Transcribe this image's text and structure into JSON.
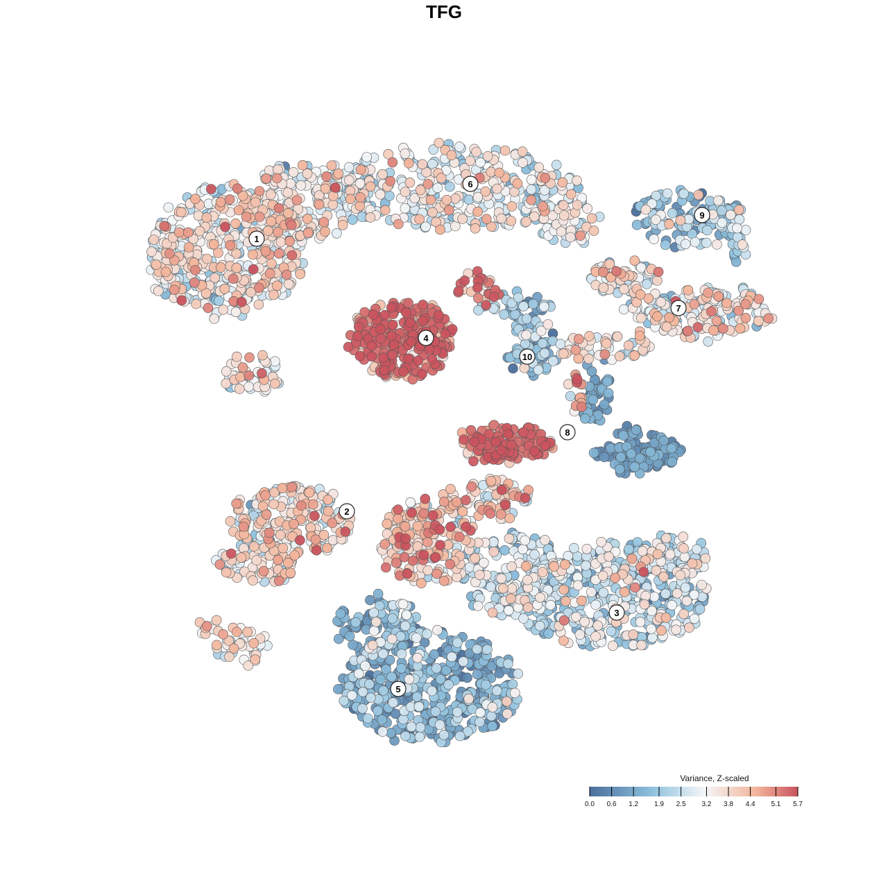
{
  "title": "TFG",
  "legend": {
    "title": "Variance, Z-scaled",
    "ticks": [
      "0.0",
      "0.6",
      "1.2",
      "1.9",
      "2.5",
      "3.2",
      "3.8",
      "4.4",
      "5.1",
      "5.7"
    ]
  },
  "colors": {
    "low": "#4a6f9c",
    "mid_low": "#8ec1de",
    "mid": "#f4f6f8",
    "mid_high": "#f3b59b",
    "high": "#c9535e"
  },
  "chart_data": {
    "type": "scatter",
    "title": "TFG",
    "color_variable": "Variance, Z-scaled",
    "color_range": [
      0.0,
      5.7
    ],
    "clusters": [
      {
        "label": "1",
        "mean_value": 3.3
      },
      {
        "label": "2",
        "mean_value": 3.5
      },
      {
        "label": "3",
        "mean_value": 2.4
      },
      {
        "label": "4",
        "mean_value": 5.0
      },
      {
        "label": "5",
        "mean_value": 1.5
      },
      {
        "label": "6",
        "mean_value": 3.0
      },
      {
        "label": "7",
        "mean_value": 3.4
      },
      {
        "label": "8",
        "mean_value": 4.6
      },
      {
        "label": "9",
        "mean_value": 1.9
      },
      {
        "label": "10",
        "mean_value": 1.8
      }
    ]
  }
}
